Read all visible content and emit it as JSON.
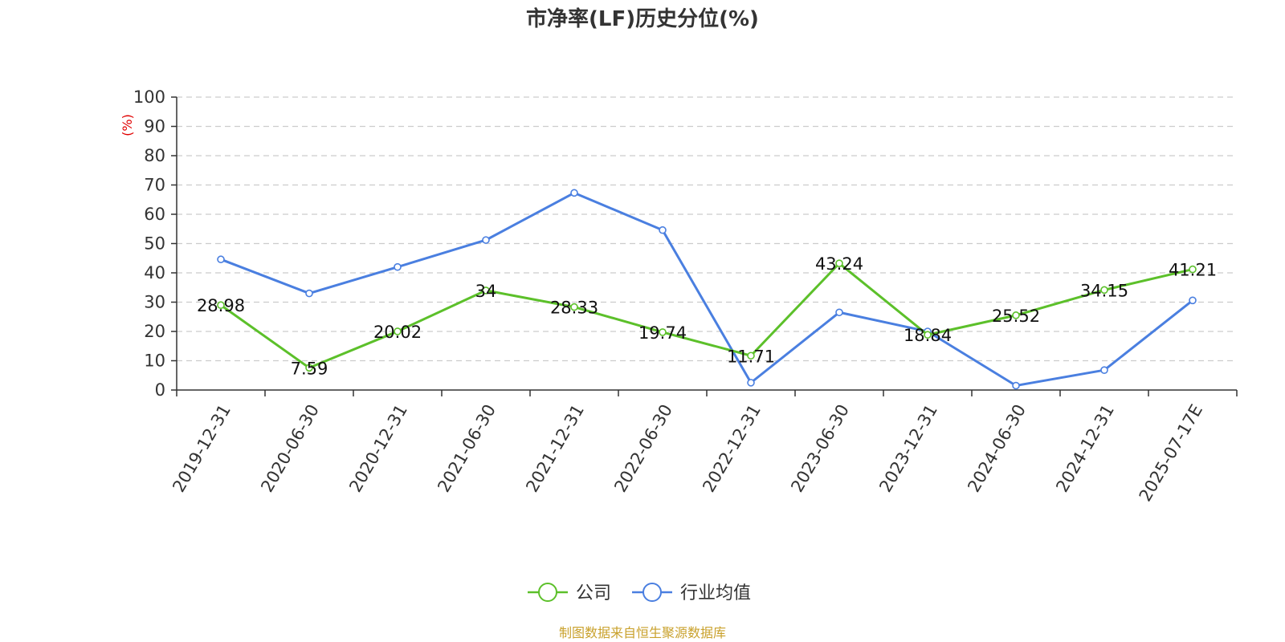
{
  "chart_data": {
    "type": "line",
    "title": "市净率(LF)历史分位(%)",
    "ylabel": "(%)",
    "ylim": [
      0,
      100
    ],
    "yticks": [
      0,
      10,
      20,
      30,
      40,
      50,
      60,
      70,
      80,
      90,
      100
    ],
    "grid": true,
    "legend_position": "bottom",
    "categories": [
      "2019-12-31",
      "2020-06-30",
      "2020-12-31",
      "2021-06-30",
      "2021-12-31",
      "2022-06-30",
      "2022-12-31",
      "2023-06-30",
      "2023-12-31",
      "2024-06-30",
      "2024-12-31",
      "2025-07-17E"
    ],
    "series": [
      {
        "name": "公司",
        "color": "#5cc02a",
        "show_labels": true,
        "values": [
          28.98,
          7.59,
          20.02,
          34,
          28.33,
          19.74,
          11.71,
          43.24,
          18.84,
          25.52,
          34.15,
          41.21
        ]
      },
      {
        "name": "行业均值",
        "color": "#4a7fe0",
        "show_labels": false,
        "values": [
          44.6,
          33.0,
          42.0,
          51.2,
          67.3,
          54.6,
          2.5,
          26.5,
          20.0,
          1.5,
          6.8,
          30.6
        ]
      }
    ]
  },
  "source": "制图数据来自恒生聚源数据库"
}
